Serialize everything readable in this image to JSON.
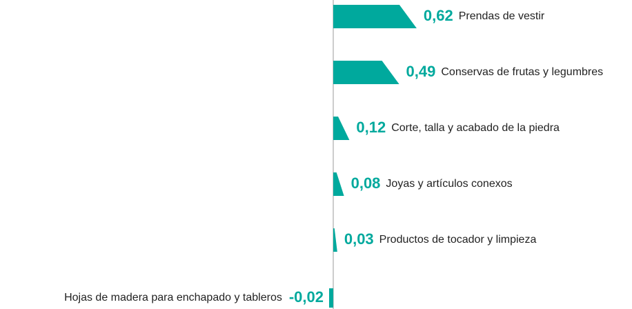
{
  "chart_data": {
    "type": "bar",
    "orientation": "horizontal",
    "color": "#00a99d",
    "categories": [
      "Prendas de vestir",
      "Conservas de frutas y legumbres",
      "Corte, talla y acabado de la piedra",
      "Joyas y artículos conexos",
      "Productos de tocador y limpieza",
      "Hojas de madera para enchapado y tableros"
    ],
    "values": [
      0.62,
      0.49,
      0.12,
      0.08,
      0.03,
      -0.02
    ],
    "value_labels": [
      "0,62",
      "0,49",
      "0,12",
      "0,08",
      "0,03",
      "-0,02"
    ]
  }
}
